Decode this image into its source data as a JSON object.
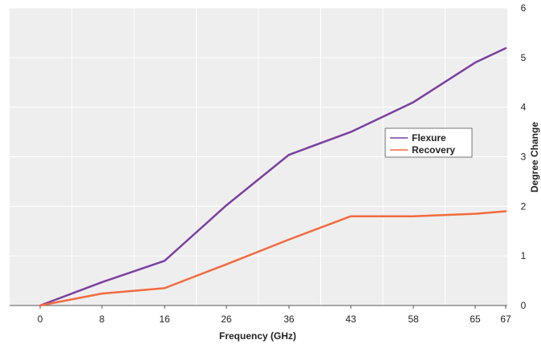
{
  "chart_data": {
    "type": "line",
    "title": "",
    "xlabel": "Frequency (GHz)",
    "ylabel": "Degree Change",
    "x_ticks": [
      0,
      8,
      16,
      26,
      36,
      43,
      58,
      65,
      67
    ],
    "y_ticks": [
      0,
      1,
      2,
      3,
      4,
      5,
      6
    ],
    "ylim": [
      0,
      6
    ],
    "grid": true,
    "y_axis_side": "right",
    "legend_position": "center-right",
    "series": [
      {
        "name": "Flexure",
        "color": "#7b3fa0",
        "x": [
          0,
          8,
          16,
          26,
          36,
          43,
          58,
          65,
          67
        ],
        "y": [
          0,
          0.47,
          0.9,
          2.02,
          3.04,
          3.5,
          4.1,
          4.9,
          5.19
        ]
      },
      {
        "name": "Recovery",
        "color": "#f26a3d",
        "x": [
          0,
          8,
          16,
          26,
          36,
          43,
          58,
          65,
          67
        ],
        "y": [
          0,
          0.24,
          0.35,
          0.83,
          1.33,
          1.8,
          1.8,
          1.85,
          1.9
        ]
      }
    ],
    "colors": {
      "plot_background": "#eeeeee",
      "grid": "#ffffff",
      "axis": "#555555"
    }
  }
}
